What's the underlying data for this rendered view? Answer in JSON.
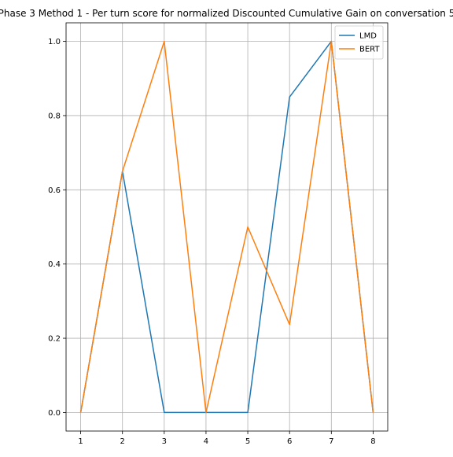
{
  "chart_data": {
    "type": "line",
    "title": "Phase 3 Method 1 - Per turn score for normalized Discounted Cumulative Gain on conversation 5",
    "xlabel": "",
    "ylabel": "",
    "x": [
      1,
      2,
      3,
      4,
      5,
      6,
      7,
      8
    ],
    "xlim": [
      0.65,
      8.35
    ],
    "ylim": [
      -0.05,
      1.05
    ],
    "xticks": [
      "1",
      "2",
      "3",
      "4",
      "5",
      "6",
      "7",
      "8"
    ],
    "yticks": [
      "0.0",
      "0.2",
      "0.4",
      "0.6",
      "0.8",
      "1.0"
    ],
    "grid": true,
    "legend_position": "top-right",
    "series": [
      {
        "name": "LMD",
        "color": "#1f77b4",
        "values": [
          0.0,
          0.65,
          0.0,
          0.0,
          0.0,
          0.85,
          1.0,
          0.0
        ]
      },
      {
        "name": "BERT",
        "color": "#ff7f0e",
        "values": [
          0.0,
          0.65,
          1.0,
          0.0,
          0.5,
          0.237,
          1.0,
          0.0
        ]
      }
    ]
  }
}
